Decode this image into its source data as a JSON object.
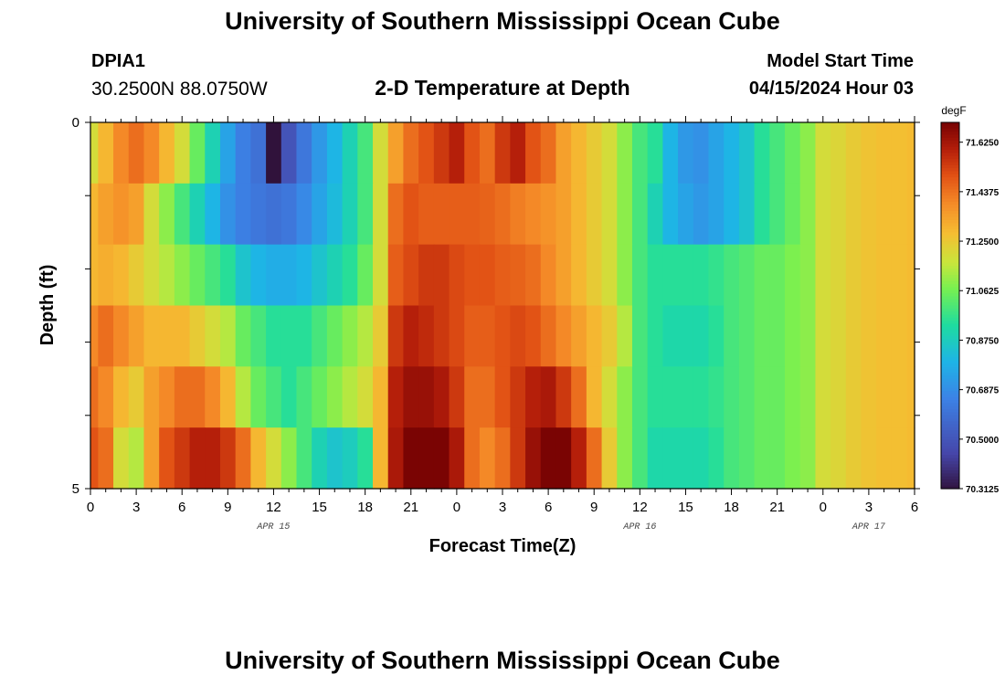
{
  "header": {
    "title": "University of Southern Mississippi Ocean Cube",
    "station_id": "DPIA1",
    "station_coords": "30.2500N  88.0750W",
    "subtitle": "2-D Temperature at Depth",
    "run_label": "Model Start Time",
    "run_value": "04/15/2024 Hour 03"
  },
  "footer": {
    "title": "University of Southern Mississippi Ocean Cube"
  },
  "chart_data": {
    "type": "heatmap",
    "xlabel": "Forecast Time(Z)",
    "ylabel": "Depth (ft)",
    "x_ticks": [
      "0",
      "3",
      "6",
      "9",
      "12",
      "15",
      "18",
      "21",
      "0",
      "3",
      "6",
      "9",
      "12",
      "15",
      "18",
      "21",
      "0",
      "3",
      "6"
    ],
    "x_range_hours": [
      0,
      54
    ],
    "date_labels": [
      {
        "label": "APR 15",
        "hour": 12
      },
      {
        "label": "APR 16",
        "hour": 36
      },
      {
        "label": "APR 17",
        "hour": 51
      }
    ],
    "y_ticks": [
      "0",
      "5"
    ],
    "y_range": [
      0,
      5
    ],
    "depth_rows": 6,
    "colorbar": {
      "unit": "degF",
      "min": 70.3125,
      "max": 71.7,
      "labels": [
        "71.6250",
        "71.4375",
        "71.2500",
        "71.0625",
        "70.8750",
        "70.6875",
        "70.5000",
        "70.3125"
      ],
      "label_values": [
        71.625,
        71.4375,
        71.25,
        71.0625,
        70.875,
        70.6875,
        70.5,
        70.3125
      ]
    },
    "hours": [
      0,
      1,
      2,
      3,
      4,
      5,
      6,
      7,
      8,
      9,
      10,
      11,
      12,
      13,
      14,
      15,
      16,
      17,
      18,
      19,
      20,
      21,
      22,
      23,
      24,
      25,
      26,
      27,
      28,
      29,
      30,
      31,
      32,
      33,
      34,
      35,
      36,
      37,
      38,
      39,
      40,
      41,
      42,
      43,
      44,
      45,
      46,
      47,
      48,
      49,
      50,
      51,
      52,
      53,
      54
    ],
    "values": [
      [
        71.2,
        71.3,
        71.4,
        71.45,
        71.4,
        71.3,
        71.2,
        71.05,
        70.9,
        70.75,
        70.65,
        70.6,
        70.3,
        70.5,
        70.62,
        70.72,
        70.8,
        70.9,
        71.0,
        71.2,
        71.35,
        71.45,
        71.5,
        71.55,
        71.6,
        71.5,
        71.45,
        71.55,
        71.6,
        71.5,
        71.45,
        71.35,
        71.3,
        71.25,
        71.2,
        71.1,
        71.0,
        70.95,
        70.8,
        70.72,
        70.7,
        70.75,
        70.8,
        70.85,
        70.95,
        71.0,
        71.05,
        71.1,
        71.2,
        71.22,
        71.25,
        71.27,
        71.28,
        71.28,
        71.29
      ],
      [
        71.3,
        71.35,
        71.38,
        71.35,
        71.2,
        71.1,
        71.0,
        70.9,
        70.8,
        70.7,
        70.65,
        70.62,
        70.6,
        70.62,
        70.68,
        70.75,
        70.82,
        70.9,
        71.0,
        71.2,
        71.45,
        71.5,
        71.48,
        71.48,
        71.48,
        71.48,
        71.47,
        71.45,
        71.42,
        71.4,
        71.38,
        71.35,
        71.3,
        71.25,
        71.2,
        71.1,
        71.0,
        70.9,
        70.8,
        70.75,
        70.72,
        70.75,
        70.8,
        70.85,
        70.95,
        71.0,
        71.05,
        71.1,
        71.2,
        71.22,
        71.25,
        71.27,
        71.28,
        71.28,
        71.29
      ],
      [
        71.3,
        71.32,
        71.3,
        71.25,
        71.2,
        71.15,
        71.1,
        71.05,
        71.0,
        70.95,
        70.85,
        70.8,
        70.78,
        70.78,
        70.8,
        70.85,
        70.9,
        70.95,
        71.05,
        71.2,
        71.48,
        71.52,
        71.55,
        71.55,
        71.52,
        71.5,
        71.5,
        71.48,
        71.47,
        71.45,
        71.4,
        71.35,
        71.3,
        71.25,
        71.2,
        71.1,
        71.0,
        70.95,
        70.95,
        70.95,
        70.95,
        70.97,
        71.0,
        71.02,
        71.05,
        71.05,
        71.08,
        71.1,
        71.2,
        71.22,
        71.25,
        71.27,
        71.28,
        71.28,
        71.29
      ],
      [
        71.4,
        71.45,
        71.4,
        71.35,
        71.3,
        71.3,
        71.3,
        71.25,
        71.2,
        71.15,
        71.05,
        71.0,
        70.95,
        70.95,
        70.95,
        71.0,
        71.05,
        71.1,
        71.15,
        71.25,
        71.55,
        71.6,
        71.58,
        71.55,
        71.52,
        71.48,
        71.48,
        71.5,
        71.52,
        71.5,
        71.45,
        71.4,
        71.35,
        71.3,
        71.25,
        71.15,
        71.0,
        70.95,
        70.92,
        70.92,
        70.92,
        70.95,
        71.0,
        71.02,
        71.05,
        71.05,
        71.08,
        71.1,
        71.2,
        71.22,
        71.25,
        71.27,
        71.28,
        71.28,
        71.29
      ],
      [
        71.45,
        71.4,
        71.3,
        71.25,
        71.35,
        71.4,
        71.45,
        71.45,
        71.4,
        71.3,
        71.15,
        71.05,
        71.0,
        70.95,
        71.0,
        71.05,
        71.1,
        71.15,
        71.2,
        71.3,
        71.6,
        71.65,
        71.65,
        71.62,
        71.55,
        71.45,
        71.45,
        71.5,
        71.55,
        71.6,
        71.62,
        71.55,
        71.45,
        71.3,
        71.2,
        71.1,
        71.0,
        70.95,
        70.95,
        70.95,
        70.95,
        70.97,
        71.0,
        71.02,
        71.05,
        71.05,
        71.08,
        71.1,
        71.2,
        71.22,
        71.25,
        71.27,
        71.28,
        71.28,
        71.29
      ],
      [
        71.5,
        71.45,
        71.2,
        71.15,
        71.35,
        71.5,
        71.55,
        71.6,
        71.6,
        71.55,
        71.45,
        71.3,
        71.2,
        71.1,
        71.0,
        70.9,
        70.85,
        70.88,
        70.95,
        71.3,
        71.62,
        71.7,
        71.72,
        71.7,
        71.62,
        71.45,
        71.4,
        71.45,
        71.55,
        71.65,
        71.72,
        71.7,
        71.6,
        71.45,
        71.25,
        71.1,
        71.0,
        70.92,
        70.92,
        70.92,
        70.92,
        70.95,
        71.0,
        71.02,
        71.05,
        71.05,
        71.08,
        71.1,
        71.2,
        71.22,
        71.25,
        71.27,
        71.28,
        71.28,
        71.29
      ]
    ]
  }
}
